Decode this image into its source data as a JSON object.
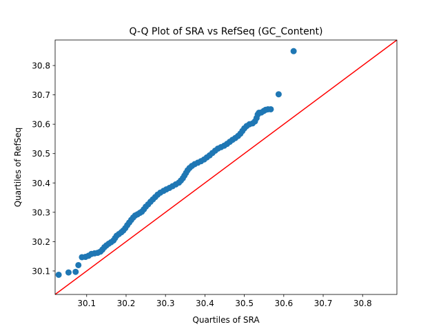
{
  "chart_data": {
    "type": "scatter",
    "title": "Q-Q Plot of SRA vs RefSeq (GC_Content)",
    "xlabel": "Quartiles of SRA",
    "ylabel": "Quartiles of RefSeq",
    "xlim": [
      30.02,
      30.887
    ],
    "ylim": [
      30.02,
      30.887
    ],
    "xticks": [
      30.1,
      30.2,
      30.3,
      30.4,
      30.5,
      30.6,
      30.7,
      30.8
    ],
    "yticks": [
      30.1,
      30.2,
      30.3,
      30.4,
      30.5,
      30.6,
      30.7,
      30.8
    ],
    "xtick_labels": [
      "30.1",
      "30.2",
      "30.3",
      "30.4",
      "30.5",
      "30.6",
      "30.7",
      "30.8"
    ],
    "ytick_labels": [
      "30.1",
      "30.2",
      "30.3",
      "30.4",
      "30.5",
      "30.6",
      "30.7",
      "30.8"
    ],
    "grid": false,
    "points_color": "#1f77b4",
    "reference_line": {
      "style": "y = x",
      "color": "#ff0000"
    },
    "points": [
      [
        30.029,
        30.087
      ],
      [
        30.054,
        30.095
      ],
      [
        30.072,
        30.097
      ],
      [
        30.079,
        30.12
      ],
      [
        30.088,
        30.147
      ],
      [
        30.097,
        30.148
      ],
      [
        30.105,
        30.152
      ],
      [
        30.112,
        30.158
      ],
      [
        30.12,
        30.16
      ],
      [
        30.128,
        30.162
      ],
      [
        30.135,
        30.166
      ],
      [
        30.14,
        30.173
      ],
      [
        30.145,
        30.181
      ],
      [
        30.15,
        30.187
      ],
      [
        30.156,
        30.193
      ],
      [
        30.162,
        30.198
      ],
      [
        30.168,
        30.204
      ],
      [
        30.172,
        30.212
      ],
      [
        30.176,
        30.22
      ],
      [
        30.182,
        30.226
      ],
      [
        30.188,
        30.232
      ],
      [
        30.193,
        30.238
      ],
      [
        30.198,
        30.246
      ],
      [
        30.203,
        30.256
      ],
      [
        30.208,
        30.265
      ],
      [
        30.213,
        30.274
      ],
      [
        30.218,
        30.282
      ],
      [
        30.223,
        30.289
      ],
      [
        30.229,
        30.293
      ],
      [
        30.235,
        30.298
      ],
      [
        30.24,
        30.302
      ],
      [
        30.245,
        30.31
      ],
      [
        30.25,
        30.319
      ],
      [
        30.256,
        30.327
      ],
      [
        30.262,
        30.336
      ],
      [
        30.268,
        30.344
      ],
      [
        30.274,
        30.352
      ],
      [
        30.28,
        30.36
      ],
      [
        30.287,
        30.367
      ],
      [
        30.295,
        30.373
      ],
      [
        30.302,
        30.378
      ],
      [
        30.31,
        30.383
      ],
      [
        30.318,
        30.389
      ],
      [
        30.326,
        30.395
      ],
      [
        30.334,
        30.401
      ],
      [
        30.339,
        30.408
      ],
      [
        30.344,
        30.416
      ],
      [
        30.348,
        30.425
      ],
      [
        30.352,
        30.434
      ],
      [
        30.356,
        30.443
      ],
      [
        30.361,
        30.451
      ],
      [
        30.367,
        30.458
      ],
      [
        30.374,
        30.464
      ],
      [
        30.382,
        30.469
      ],
      [
        30.39,
        30.474
      ],
      [
        30.398,
        30.48
      ],
      [
        30.405,
        30.487
      ],
      [
        30.412,
        30.494
      ],
      [
        30.419,
        30.502
      ],
      [
        30.426,
        30.51
      ],
      [
        30.433,
        30.517
      ],
      [
        30.441,
        30.522
      ],
      [
        30.449,
        30.527
      ],
      [
        30.456,
        30.533
      ],
      [
        30.463,
        30.54
      ],
      [
        30.47,
        30.547
      ],
      [
        30.477,
        30.553
      ],
      [
        30.484,
        30.56
      ],
      [
        30.49,
        30.568
      ],
      [
        30.495,
        30.577
      ],
      [
        30.5,
        30.586
      ],
      [
        30.506,
        30.594
      ],
      [
        30.513,
        30.6
      ],
      [
        30.521,
        30.603
      ],
      [
        30.527,
        30.61
      ],
      [
        30.531,
        30.621
      ],
      [
        30.534,
        30.633
      ],
      [
        30.537,
        30.639
      ],
      [
        30.543,
        30.64
      ],
      [
        30.549,
        30.645
      ],
      [
        30.554,
        30.649
      ],
      [
        30.56,
        30.651
      ],
      [
        30.567,
        30.651
      ],
      [
        30.587,
        30.702
      ],
      [
        30.625,
        30.849
      ]
    ]
  }
}
